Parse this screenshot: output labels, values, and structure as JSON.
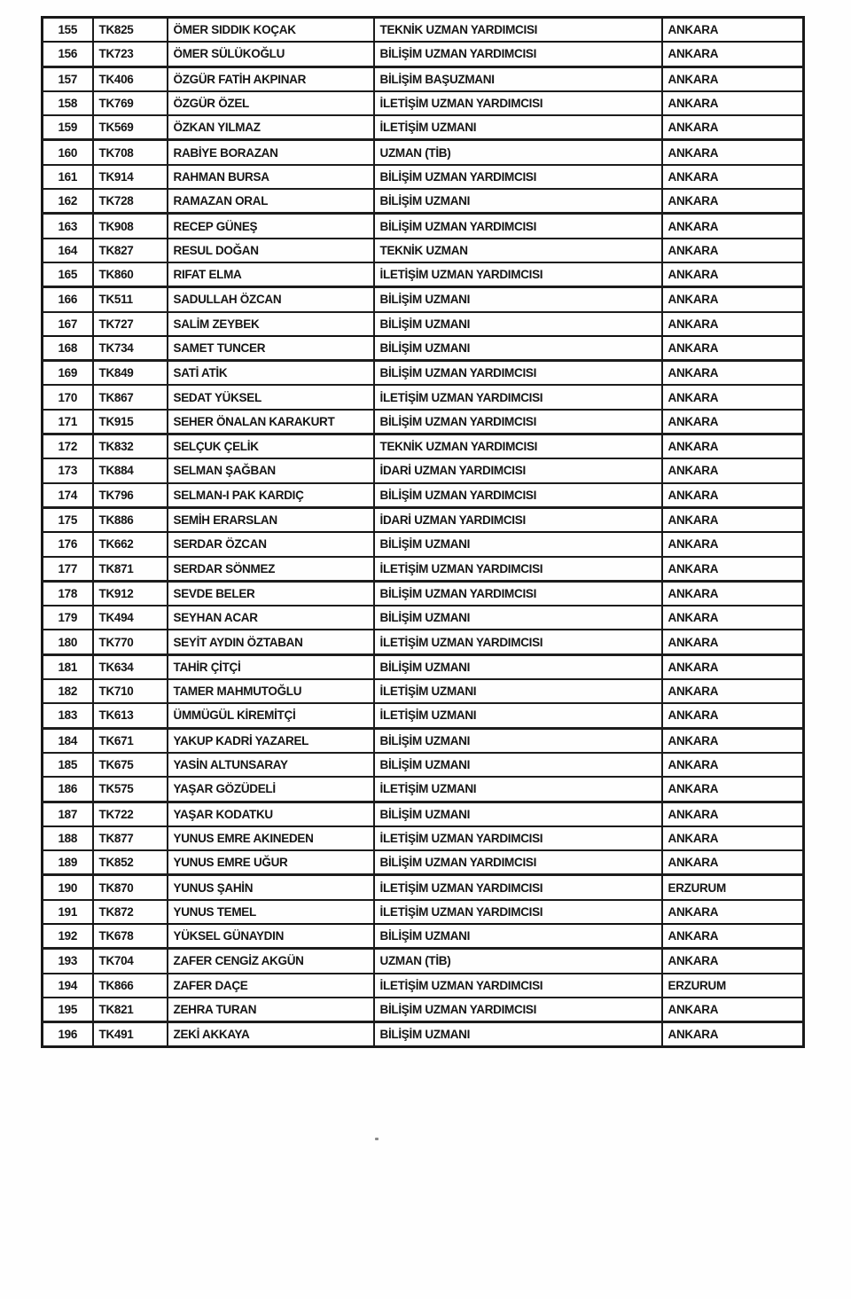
{
  "table": {
    "rows": [
      {
        "no": "155",
        "code": "TK825",
        "name": "ÖMER SIDDIK KOÇAK",
        "title": "TEKNİK UZMAN YARDIMCISI",
        "city": "ANKARA"
      },
      {
        "no": "156",
        "code": "TK723",
        "name": "ÖMER SÜLÜKOĞLU",
        "title": "BİLİŞİM UZMAN YARDIMCISI",
        "city": "ANKARA"
      },
      {
        "no": "157",
        "code": "TK406",
        "name": "ÖZGÜR FATİH AKPINAR",
        "title": "BİLİŞİM BAŞUZMANI",
        "city": "ANKARA"
      },
      {
        "no": "158",
        "code": "TK769",
        "name": "ÖZGÜR ÖZEL",
        "title": "İLETİŞİM UZMAN YARDIMCISI",
        "city": "ANKARA"
      },
      {
        "no": "159",
        "code": "TK569",
        "name": "ÖZKAN YILMAZ",
        "title": "İLETİŞİM UZMANI",
        "city": "ANKARA"
      },
      {
        "no": "160",
        "code": "TK708",
        "name": "RABİYE BORAZAN",
        "title": "UZMAN (TİB)",
        "city": "ANKARA"
      },
      {
        "no": "161",
        "code": "TK914",
        "name": "RAHMAN BURSA",
        "title": "BİLİŞİM UZMAN YARDIMCISI",
        "city": "ANKARA"
      },
      {
        "no": "162",
        "code": "TK728",
        "name": "RAMAZAN ORAL",
        "title": "BİLİŞİM UZMANI",
        "city": "ANKARA"
      },
      {
        "no": "163",
        "code": "TK908",
        "name": "RECEP GÜNEŞ",
        "title": "BİLİŞİM UZMAN YARDIMCISI",
        "city": "ANKARA"
      },
      {
        "no": "164",
        "code": "TK827",
        "name": "RESUL DOĞAN",
        "title": "TEKNİK UZMAN",
        "city": "ANKARA"
      },
      {
        "no": "165",
        "code": "TK860",
        "name": "RIFAT ELMA",
        "title": "İLETİŞİM UZMAN YARDIMCISI",
        "city": "ANKARA"
      },
      {
        "no": "166",
        "code": "TK511",
        "name": "SADULLAH ÖZCAN",
        "title": "BİLİŞİM UZMANI",
        "city": "ANKARA"
      },
      {
        "no": "167",
        "code": "TK727",
        "name": "SALİM ZEYBEK",
        "title": "BİLİŞİM UZMANI",
        "city": "ANKARA"
      },
      {
        "no": "168",
        "code": "TK734",
        "name": "SAMET TUNCER",
        "title": "BİLİŞİM UZMANI",
        "city": "ANKARA"
      },
      {
        "no": "169",
        "code": "TK849",
        "name": "SATİ ATİK",
        "title": "BİLİŞİM UZMAN YARDIMCISI",
        "city": "ANKARA"
      },
      {
        "no": "170",
        "code": "TK867",
        "name": "SEDAT YÜKSEL",
        "title": "İLETİŞİM UZMAN YARDIMCISI",
        "city": "ANKARA"
      },
      {
        "no": "171",
        "code": "TK915",
        "name": "SEHER ÖNALAN KARAKURT",
        "title": "BİLİŞİM UZMAN YARDIMCISI",
        "city": "ANKARA"
      },
      {
        "no": "172",
        "code": "TK832",
        "name": "SELÇUK ÇELİK",
        "title": "TEKNİK UZMAN YARDIMCISI",
        "city": "ANKARA"
      },
      {
        "no": "173",
        "code": "TK884",
        "name": "SELMAN ŞAĞBAN",
        "title": "İDARİ UZMAN YARDIMCISI",
        "city": "ANKARA"
      },
      {
        "no": "174",
        "code": "TK796",
        "name": "SELMAN-I PAK KARDIÇ",
        "title": "BİLİŞİM UZMAN YARDIMCISI",
        "city": "ANKARA"
      },
      {
        "no": "175",
        "code": "TK886",
        "name": "SEMİH ERARSLAN",
        "title": "İDARİ UZMAN YARDIMCISI",
        "city": "ANKARA"
      },
      {
        "no": "176",
        "code": "TK662",
        "name": "SERDAR ÖZCAN",
        "title": "BİLİŞİM UZMANI",
        "city": "ANKARA"
      },
      {
        "no": "177",
        "code": "TK871",
        "name": "SERDAR SÖNMEZ",
        "title": "İLETİŞİM UZMAN YARDIMCISI",
        "city": "ANKARA"
      },
      {
        "no": "178",
        "code": "TK912",
        "name": "SEVDE BELER",
        "title": "BİLİŞİM UZMAN YARDIMCISI",
        "city": "ANKARA"
      },
      {
        "no": "179",
        "code": "TK494",
        "name": "SEYHAN ACAR",
        "title": "BİLİŞİM UZMANI",
        "city": "ANKARA"
      },
      {
        "no": "180",
        "code": "TK770",
        "name": "SEYİT AYDIN ÖZTABAN",
        "title": "İLETİŞİM UZMAN YARDIMCISI",
        "city": "ANKARA"
      },
      {
        "no": "181",
        "code": "TK634",
        "name": "TAHİR ÇİTÇİ",
        "title": "BİLİŞİM UZMANI",
        "city": "ANKARA"
      },
      {
        "no": "182",
        "code": "TK710",
        "name": "TAMER MAHMUTOĞLU",
        "title": "İLETİŞİM UZMANI",
        "city": "ANKARA"
      },
      {
        "no": "183",
        "code": "TK613",
        "name": "ÜMMÜGÜL KİREMİTÇİ",
        "title": "İLETİŞİM UZMANI",
        "city": "ANKARA"
      },
      {
        "no": "184",
        "code": "TK671",
        "name": "YAKUP KADRİ YAZAREL",
        "title": "BİLİŞİM UZMANI",
        "city": "ANKARA"
      },
      {
        "no": "185",
        "code": "TK675",
        "name": "YASİN ALTUNSARAY",
        "title": "BİLİŞİM UZMANI",
        "city": "ANKARA"
      },
      {
        "no": "186",
        "code": "TK575",
        "name": "YAŞAR GÖZÜDELİ",
        "title": "İLETİŞİM UZMANI",
        "city": "ANKARA"
      },
      {
        "no": "187",
        "code": "TK722",
        "name": "YAŞAR KODATKU",
        "title": "BİLİŞİM UZMANI",
        "city": "ANKARA"
      },
      {
        "no": "188",
        "code": "TK877",
        "name": "YUNUS EMRE AKINEDEN",
        "title": "İLETİŞİM UZMAN YARDIMCISI",
        "city": "ANKARA"
      },
      {
        "no": "189",
        "code": "TK852",
        "name": "YUNUS EMRE UĞUR",
        "title": "BİLİŞİM UZMAN YARDIMCISI",
        "city": "ANKARA"
      },
      {
        "no": "190",
        "code": "TK870",
        "name": "YUNUS ŞAHİN",
        "title": "İLETİŞİM UZMAN YARDIMCISI",
        "city": "ERZURUM"
      },
      {
        "no": "191",
        "code": "TK872",
        "name": "YUNUS TEMEL",
        "title": "İLETİŞİM UZMAN YARDIMCISI",
        "city": "ANKARA"
      },
      {
        "no": "192",
        "code": "TK678",
        "name": "YÜKSEL GÜNAYDIN",
        "title": "BİLİŞİM UZMANI",
        "city": "ANKARA"
      },
      {
        "no": "193",
        "code": "TK704",
        "name": "ZAFER CENGİZ AKGÜN",
        "title": "UZMAN (TİB)",
        "city": "ANKARA"
      },
      {
        "no": "194",
        "code": "TK866",
        "name": "ZAFER DAÇE",
        "title": "İLETİŞİM UZMAN YARDIMCISI",
        "city": "ERZURUM"
      },
      {
        "no": "195",
        "code": "TK821",
        "name": "ZEHRA TURAN",
        "title": "BİLİŞİM UZMAN YARDIMCISI",
        "city": "ANKARA"
      },
      {
        "no": "196",
        "code": "TK491",
        "name": "ZEKİ AKKAYA",
        "title": "BİLİŞİM UZMANI",
        "city": "ANKARA"
      }
    ]
  },
  "colors": {
    "ink": "#141414",
    "border": "#1c1c1c",
    "paper": "#fefefe"
  }
}
